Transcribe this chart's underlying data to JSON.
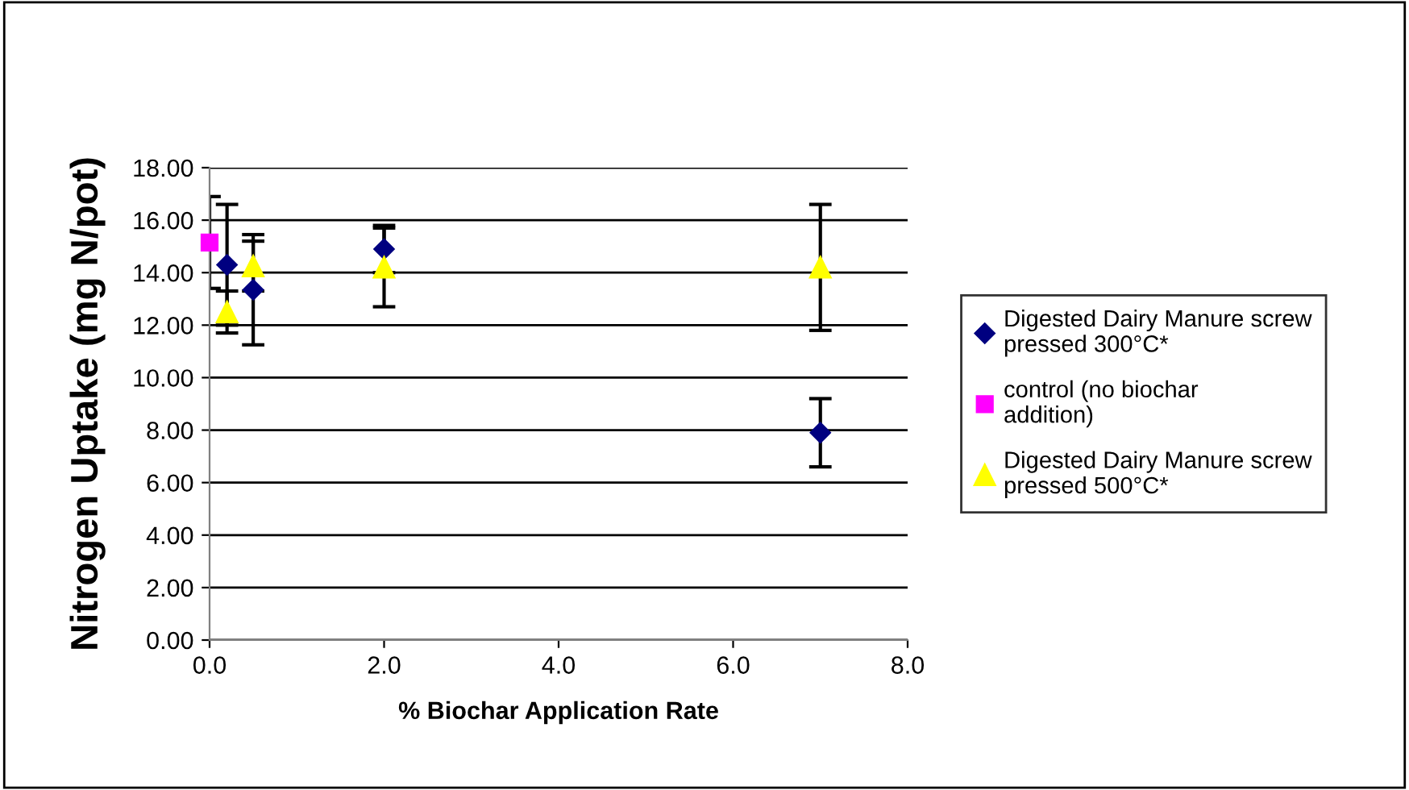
{
  "chart_data": {
    "type": "scatter",
    "xlabel": "% Biochar Application Rate",
    "ylabel": "Nitrogen Uptake (mg N/pot)",
    "xlim": [
      0,
      8
    ],
    "xticks": [
      {
        "value": 0,
        "label": "0.0"
      },
      {
        "value": 2,
        "label": "2.0"
      },
      {
        "value": 4,
        "label": "4.0"
      },
      {
        "value": 6,
        "label": "6.0"
      },
      {
        "value": 8,
        "label": "8.0"
      }
    ],
    "ylim": [
      0,
      18
    ],
    "yticks": [
      {
        "value": 0,
        "label": "0.00"
      },
      {
        "value": 2,
        "label": "2.00"
      },
      {
        "value": 4,
        "label": "4.00"
      },
      {
        "value": 6,
        "label": "6.00"
      },
      {
        "value": 8,
        "label": "8.00"
      },
      {
        "value": 10,
        "label": "10.00"
      },
      {
        "value": 12,
        "label": "12.00"
      },
      {
        "value": 14,
        "label": "14.00"
      },
      {
        "value": 16,
        "label": "16.00"
      },
      {
        "value": 18,
        "label": "18.00"
      }
    ],
    "grid": "y",
    "legend": "right",
    "series": [
      {
        "name": "Digested Dairy Manure screw pressed 300°C*",
        "color": "#000080",
        "marker": "diamond",
        "x": [
          0.2,
          0.5,
          2,
          7
        ],
        "values": [
          14.3,
          13.35,
          14.9,
          7.9
        ],
        "errors": [
          2.3,
          2.1,
          0.9,
          1.3
        ]
      },
      {
        "name": "control (no biochar addition)",
        "color": "#ff00ff",
        "marker": "square",
        "x": [
          0
        ],
        "values": [
          15.15
        ],
        "errors": [
          1.75
        ]
      },
      {
        "name": "Digested Dairy Manure screw pressed 500°C*",
        "color": "#ffff00",
        "marker": "triangle",
        "x": [
          0.2,
          0.5,
          2,
          7
        ],
        "values": [
          12.5,
          14.25,
          14.2,
          14.2
        ],
        "errors": [
          0.8,
          0.95,
          1.5,
          2.4
        ]
      }
    ]
  }
}
